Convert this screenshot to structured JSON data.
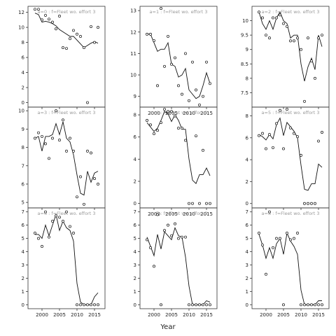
{
  "figure": {
    "xlabel": "Year"
  },
  "chart_data": [
    {
      "type": "line",
      "title": "a=0 : f=Fleet wo. effort 3",
      "xlim": [
        1996,
        2018
      ],
      "ylim": [
        -0.6,
        12.8
      ],
      "yticks": [
        0,
        2,
        4,
        6,
        8,
        10,
        12
      ],
      "xticks": [
        2000,
        2005,
        2010,
        2015
      ],
      "series": [
        {
          "kind": "line",
          "x": [
            1998,
            1999,
            2000,
            2001,
            2002,
            2003,
            2004,
            2005,
            2006,
            2007,
            2008,
            2009,
            2010,
            2011,
            2012,
            2013,
            2014,
            2015,
            2016
          ],
          "y": [
            11.9,
            11.7,
            10.7,
            10.8,
            10.7,
            10.5,
            10.2,
            9.7,
            9.4,
            9.1,
            8.8,
            8.8,
            8.3,
            7.8,
            7.3,
            7.6,
            7.9,
            8.1,
            7.9
          ]
        },
        {
          "kind": "points",
          "x": [
            1998,
            1999,
            2000,
            2001,
            2002,
            2003,
            2004,
            2005,
            2006,
            2007,
            2008,
            2009,
            2010,
            2011,
            2012,
            2013,
            2014,
            2015,
            2016
          ],
          "y": [
            12.4,
            12.4,
            11.0,
            11.6,
            11.1,
            10.7,
            9.8,
            11.5,
            7.3,
            7.2,
            8.5,
            9.6,
            9.1,
            8.8,
            7.3,
            0.0,
            10.1,
            8.0,
            10.0
          ]
        }
      ]
    },
    {
      "type": "line",
      "title": "a=3 : f=Fleet wo. effort 3",
      "xlim": [
        1996,
        2018
      ],
      "ylim": [
        4.7,
        10.2
      ],
      "yticks": [
        5,
        6,
        7,
        8,
        9,
        10
      ],
      "xticks": [
        2000,
        2005,
        2010,
        2015
      ],
      "series": [
        {
          "kind": "line",
          "x": [
            1998,
            1999,
            2000,
            2001,
            2002,
            2003,
            2004,
            2005,
            2006,
            2007,
            2008,
            2009,
            2010,
            2011,
            2012,
            2013,
            2014,
            2015,
            2016
          ],
          "y": [
            8.5,
            8.6,
            7.8,
            8.6,
            8.6,
            8.7,
            9.3,
            8.7,
            9.4,
            8.5,
            8.3,
            7.6,
            6.5,
            5.5,
            5.4,
            6.7,
            6.1,
            6.6,
            6.7
          ]
        },
        {
          "kind": "points",
          "x": [
            1998,
            1999,
            2000,
            2001,
            2002,
            2003,
            2004,
            2005,
            2006,
            2007,
            2008,
            2009,
            2010,
            2011,
            2012,
            2013,
            2014,
            2015,
            2016
          ],
          "y": [
            8.5,
            8.8,
            8.6,
            8.2,
            7.4,
            8.5,
            10.0,
            8.4,
            9.5,
            7.8,
            8.5,
            7.8,
            5.3,
            6.4,
            4.9,
            7.8,
            7.7,
            6.3,
            6.0
          ]
        }
      ]
    },
    {
      "type": "line",
      "title": "a=6 : f=Fleet wo. effort 3",
      "xlim": [
        1996,
        2018
      ],
      "ylim": [
        -0.3,
        7.3
      ],
      "yticks": [
        0,
        1,
        2,
        3,
        4,
        5,
        6,
        7
      ],
      "xticks": [
        2000,
        2005,
        2010,
        2015
      ],
      "series": [
        {
          "kind": "line",
          "x": [
            1998,
            1999,
            2000,
            2001,
            2002,
            2003,
            2004,
            2005,
            2006,
            2007,
            2008,
            2009,
            2010,
            2011,
            2012,
            2013,
            2014,
            2015,
            2016
          ],
          "y": [
            5.3,
            5.3,
            5.0,
            6.0,
            5.2,
            6.0,
            6.8,
            5.6,
            6.3,
            5.8,
            5.6,
            4.8,
            1.6,
            0.2,
            0.0,
            0.0,
            0.0,
            0.6,
            0.9
          ]
        },
        {
          "kind": "points",
          "x": [
            1998,
            1999,
            2000,
            2001,
            2002,
            2003,
            2004,
            2005,
            2006,
            2007,
            2008,
            2009,
            2010,
            2011,
            2012,
            2013,
            2014,
            2015,
            2016
          ],
          "y": [
            5.4,
            5.0,
            4.4,
            7.0,
            5.1,
            6.3,
            6.7,
            6.6,
            6.3,
            7.0,
            5.9,
            5.4,
            0.0,
            0.0,
            0.0,
            0.0,
            0.0,
            0.0,
            0.0
          ]
        }
      ]
    },
    {
      "type": "line",
      "title": "a=1 : f=Fleet wo. effort 3",
      "xlim": [
        1996,
        2018
      ],
      "ylim": [
        8.5,
        13.2
      ],
      "yticks": [
        9,
        10,
        11,
        12,
        13
      ],
      "xticks": [
        2000,
        2005,
        2010,
        2015
      ],
      "series": [
        {
          "kind": "line",
          "x": [
            1998,
            1999,
            2000,
            2001,
            2002,
            2003,
            2004,
            2005,
            2006,
            2007,
            2008,
            2009,
            2010,
            2011,
            2012,
            2013,
            2014,
            2015,
            2016
          ],
          "y": [
            11.9,
            11.9,
            11.5,
            11.1,
            11.2,
            11.2,
            11.5,
            10.5,
            10.4,
            9.9,
            10.0,
            10.3,
            9.3,
            9.1,
            8.9,
            9.0,
            9.5,
            10.1,
            9.6
          ]
        },
        {
          "kind": "points",
          "x": [
            1998,
            1999,
            2000,
            2001,
            2002,
            2003,
            2004,
            2005,
            2006,
            2007,
            2008,
            2009,
            2010,
            2011,
            2012,
            2013,
            2014,
            2015,
            2016
          ],
          "y": [
            11.9,
            11.9,
            11.6,
            9.5,
            13.1,
            10.4,
            11.8,
            10.5,
            10.8,
            9.5,
            9.1,
            11.0,
            8.8,
            10.6,
            9.3,
            8.6,
            9.0,
            10.6,
            9.6
          ]
        }
      ]
    },
    {
      "type": "line",
      "title": "a=4 : f=Fleet wo. effort 3",
      "xlim": [
        1996,
        2018
      ],
      "ylim": [
        -0.4,
        8.7
      ],
      "yticks": [
        0,
        2,
        4,
        6,
        8
      ],
      "xticks": [
        2000,
        2005,
        2010,
        2015
      ],
      "series": [
        {
          "kind": "line",
          "x": [
            1998,
            1999,
            2000,
            2001,
            2002,
            2003,
            2004,
            2005,
            2006,
            2007,
            2008,
            2009,
            2010,
            2011,
            2012,
            2013,
            2014,
            2015,
            2016
          ],
          "y": [
            7.3,
            6.9,
            6.5,
            6.8,
            7.5,
            8.3,
            8.1,
            7.4,
            8.0,
            7.5,
            6.7,
            6.7,
            4.0,
            2.1,
            1.8,
            2.6,
            2.6,
            3.2,
            2.5
          ]
        },
        {
          "kind": "points",
          "x": [
            1998,
            1999,
            2000,
            2001,
            2002,
            2003,
            2004,
            2005,
            2006,
            2007,
            2008,
            2009,
            2010,
            2011,
            2012,
            2013,
            2014,
            2015,
            2016
          ],
          "y": [
            7.5,
            7.1,
            6.3,
            6.6,
            7.3,
            8.5,
            8.3,
            8.3,
            7.9,
            6.8,
            6.8,
            5.7,
            0.0,
            0.0,
            6.1,
            0.0,
            4.8,
            0.0,
            0.0
          ]
        }
      ]
    },
    {
      "type": "line",
      "title": "a=7 : f=Fleet wo. effort 3",
      "xlim": [
        1996,
        2018
      ],
      "ylim": [
        -0.3,
        7.3
      ],
      "yticks": [
        0,
        1,
        2,
        3,
        4,
        5,
        6,
        7
      ],
      "xticks": [
        2000,
        2005,
        2010,
        2015
      ],
      "series": [
        {
          "kind": "line",
          "x": [
            1998,
            1999,
            2000,
            2001,
            2002,
            2003,
            2004,
            2005,
            2006,
            2007,
            2008,
            2009,
            2010,
            2011,
            2012,
            2013,
            2014,
            2015,
            2016
          ],
          "y": [
            5.1,
            4.4,
            3.7,
            5.3,
            4.2,
            5.5,
            5.2,
            4.9,
            5.8,
            5.2,
            5.1,
            3.6,
            1.4,
            0.0,
            0.0,
            0.0,
            0.0,
            0.3,
            0.2
          ]
        },
        {
          "kind": "points",
          "x": [
            1998,
            1999,
            2000,
            2001,
            2002,
            2003,
            2004,
            2005,
            2006,
            2007,
            2008,
            2009,
            2010,
            2011,
            2012,
            2013,
            2014,
            2015,
            2016
          ],
          "y": [
            4.9,
            4.3,
            2.9,
            6.8,
            0.0,
            5.6,
            6.0,
            5.2,
            6.1,
            5.0,
            5.1,
            5.1,
            0.0,
            0.0,
            0.0,
            0.0,
            0.0,
            0.0,
            0.0
          ]
        }
      ]
    },
    {
      "type": "line",
      "title": "a=2 : f=Fleet wo. effort 3",
      "xlim": [
        1996,
        2018
      ],
      "ylim": [
        7.0,
        10.5
      ],
      "yticks": [
        7.5,
        8.0,
        8.5,
        9.0,
        9.5,
        10.0
      ],
      "xticks": [
        2000,
        2005,
        2010,
        2015
      ],
      "series": [
        {
          "kind": "line",
          "x": [
            1998,
            1999,
            2000,
            2001,
            2002,
            2003,
            2004,
            2005,
            2006,
            2007,
            2008,
            2009,
            2010,
            2011,
            2012,
            2013,
            2014,
            2015,
            2016
          ],
          "y": [
            10.3,
            9.9,
            9.7,
            10.0,
            9.7,
            10.1,
            10.3,
            10.0,
            9.9,
            9.4,
            9.5,
            9.5,
            8.5,
            7.9,
            8.4,
            8.7,
            8.3,
            9.5,
            9.1
          ]
        },
        {
          "kind": "points",
          "x": [
            1998,
            1999,
            2000,
            2001,
            2002,
            2003,
            2004,
            2005,
            2006,
            2007,
            2008,
            2009,
            2010,
            2011,
            2012,
            2013,
            2014,
            2015,
            2016
          ],
          "y": [
            10.3,
            10.1,
            9.5,
            9.4,
            10.1,
            10.1,
            10.2,
            9.9,
            9.8,
            9.3,
            9.3,
            9.4,
            9.0,
            7.2,
            9.4,
            8.6,
            8.0,
            9.4,
            9.5
          ]
        }
      ]
    },
    {
      "type": "line",
      "title": "a=5 : f=Fleet wo. effort 3",
      "xlim": [
        1996,
        2018
      ],
      "ylim": [
        -0.4,
        8.8
      ],
      "yticks": [
        0,
        2,
        4,
        6,
        8
      ],
      "xticks": [
        2000,
        2005,
        2010,
        2015
      ],
      "series": [
        {
          "kind": "line",
          "x": [
            1998,
            1999,
            2000,
            2001,
            2002,
            2003,
            2004,
            2005,
            2006,
            2007,
            2008,
            2009,
            2010,
            2011,
            2012,
            2013,
            2014,
            2015,
            2016
          ],
          "y": [
            6.3,
            6.1,
            5.8,
            6.3,
            5.9,
            7.2,
            7.8,
            6.2,
            7.4,
            7.0,
            6.6,
            6.0,
            3.5,
            1.3,
            1.2,
            1.8,
            1.8,
            3.6,
            3.3
          ]
        },
        {
          "kind": "points",
          "x": [
            1998,
            1999,
            2000,
            2001,
            2002,
            2003,
            2004,
            2005,
            2006,
            2007,
            2008,
            2009,
            2010,
            2011,
            2012,
            2013,
            2014,
            2015,
            2016
          ],
          "y": [
            6.2,
            6.4,
            5.0,
            6.3,
            5.1,
            7.3,
            8.5,
            5.0,
            8.6,
            6.9,
            6.4,
            6.1,
            4.4,
            0.0,
            0.0,
            0.0,
            0.0,
            5.7,
            6.5
          ]
        }
      ]
    },
    {
      "type": "line",
      "title": "a=8 : f=Fleet wo. effort 3",
      "xlim": [
        1996,
        2018
      ],
      "ylim": [
        -0.3,
        7.3
      ],
      "yticks": [
        0,
        1,
        2,
        3,
        4,
        5,
        6,
        7
      ],
      "xticks": [
        2000,
        2005,
        2010,
        2015
      ],
      "series": [
        {
          "kind": "line",
          "x": [
            1998,
            1999,
            2000,
            2001,
            2002,
            2003,
            2004,
            2005,
            2006,
            2007,
            2008,
            2009,
            2010,
            2011,
            2012,
            2013,
            2014,
            2015,
            2016
          ],
          "y": [
            5.3,
            4.5,
            3.5,
            4.3,
            3.5,
            4.6,
            5.0,
            3.8,
            5.4,
            4.8,
            4.4,
            3.8,
            1.1,
            0.0,
            0.0,
            0.0,
            0.0,
            0.3,
            0.3
          ]
        },
        {
          "kind": "points",
          "x": [
            1998,
            1999,
            2000,
            2001,
            2002,
            2003,
            2004,
            2005,
            2006,
            2007,
            2008,
            2009,
            2010,
            2011,
            2012,
            2013,
            2014,
            2015,
            2016
          ],
          "y": [
            5.4,
            4.5,
            2.3,
            7.0,
            4.3,
            5.0,
            5.0,
            0.0,
            5.4,
            4.9,
            5.0,
            5.4,
            0.0,
            0.0,
            0.0,
            0.0,
            0.0,
            0.0,
            0.0
          ]
        }
      ]
    }
  ]
}
